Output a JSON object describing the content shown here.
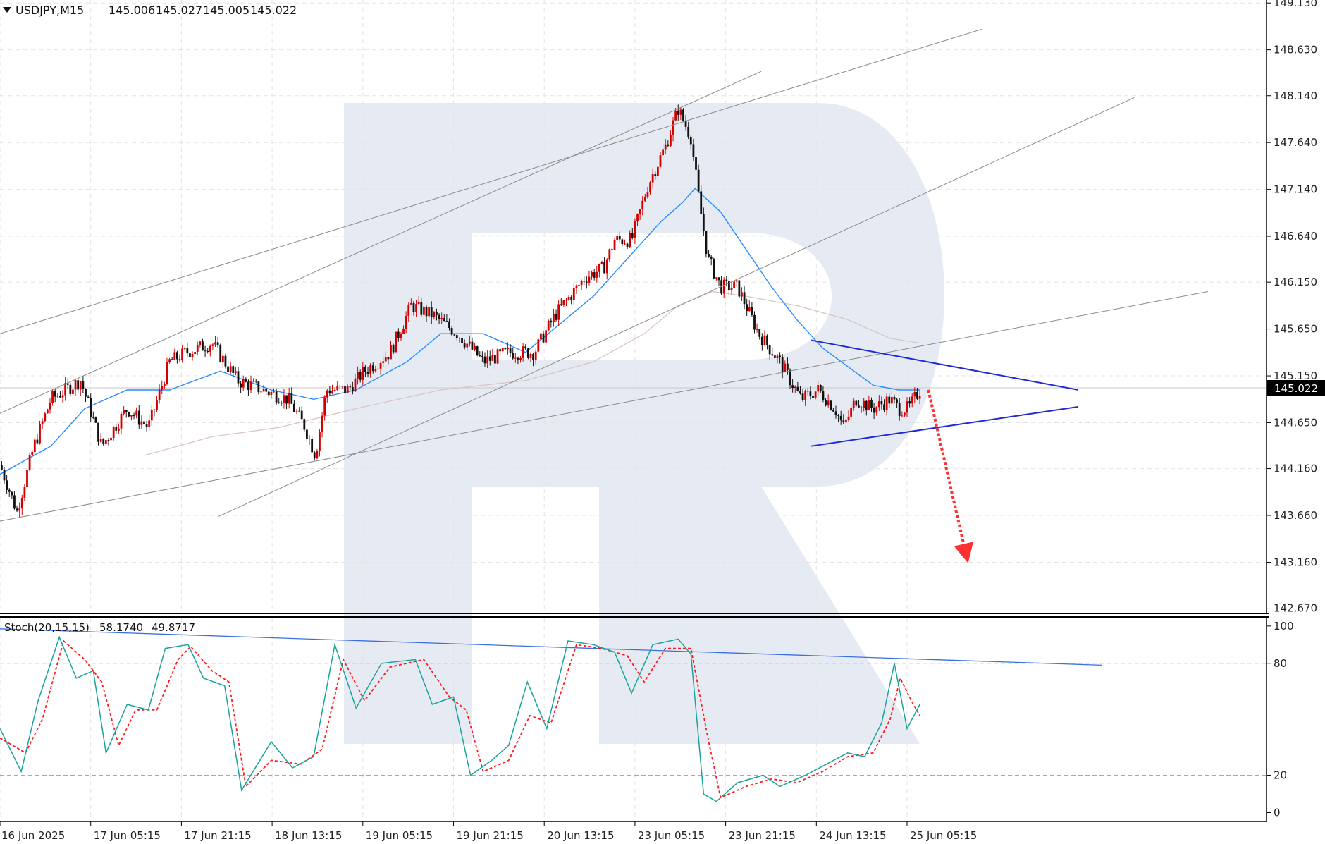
{
  "header": {
    "symbol": "USDJPY,M15",
    "open": "145.006",
    "high": "145.027",
    "low": "145.005",
    "close": "145.022"
  },
  "indicator": {
    "name": "Stoch(20,15,15)",
    "main_value": "58.1740",
    "signal_value": "49.8717",
    "levels": [
      "100",
      "80",
      "20",
      "0"
    ]
  },
  "current_price_label": "145.022",
  "colors": {
    "bull_candle": "#d40000",
    "bear_candle": "#111111",
    "ma_fast": "#2a8cff",
    "ma_slow": "#dcc4c4",
    "channel": "#8a8a8a",
    "triangle": "#1f2ad6",
    "forecast_arrow": "#ff3030",
    "stoch_main": "#1aa39a",
    "stoch_signal": "#ff1a1a",
    "stoch_trend": "#3b6fe0",
    "grid": "#e4e4e4",
    "watermark": "#e6ebf3",
    "price_tag_bg": "#000000"
  },
  "chart_data": [
    {
      "type": "candlestick",
      "title": "USDJPY,M15",
      "xlabel": "",
      "ylabel": "",
      "ylim": [
        142.67,
        149.13
      ],
      "y_ticks": [
        "149.130",
        "148.630",
        "148.140",
        "147.640",
        "147.140",
        "146.640",
        "146.150",
        "145.650",
        "145.150",
        "144.650",
        "144.160",
        "143.660",
        "143.160",
        "142.670"
      ],
      "x_ticks": [
        "16 Jun 2025",
        "17 Jun 05:15",
        "17 Jun 21:15",
        "18 Jun 13:15",
        "19 Jun 05:15",
        "19 Jun 21:15",
        "20 Jun 13:15",
        "23 Jun 05:15",
        "23 Jun 21:15",
        "24 Jun 13:15",
        "25 Jun 05:15"
      ],
      "grid": true,
      "last_price": 145.022,
      "price_path": [
        [
          0,
          144.2
        ],
        [
          20,
          143.7
        ],
        [
          40,
          144.4
        ],
        [
          60,
          144.9
        ],
        [
          95,
          145.1
        ],
        [
          120,
          144.4
        ],
        [
          150,
          144.8
        ],
        [
          175,
          144.6
        ],
        [
          200,
          145.3
        ],
        [
          220,
          145.4
        ],
        [
          250,
          145.5
        ],
        [
          280,
          145.1
        ],
        [
          310,
          145.0
        ],
        [
          340,
          144.9
        ],
        [
          360,
          144.6
        ],
        [
          372,
          144.3
        ],
        [
          385,
          145.0
        ],
        [
          410,
          145.0
        ],
        [
          430,
          145.2
        ],
        [
          460,
          145.4
        ],
        [
          485,
          145.9
        ],
        [
          510,
          145.8
        ],
        [
          540,
          145.6
        ],
        [
          570,
          145.3
        ],
        [
          600,
          145.4
        ],
        [
          630,
          145.4
        ],
        [
          655,
          145.8
        ],
        [
          690,
          146.2
        ],
        [
          712,
          146.3
        ],
        [
          725,
          146.6
        ],
        [
          745,
          146.6
        ],
        [
          765,
          147.2
        ],
        [
          785,
          147.6
        ],
        [
          800,
          148.0
        ],
        [
          815,
          147.7
        ],
        [
          825,
          147.0
        ],
        [
          835,
          146.4
        ],
        [
          850,
          146.1
        ],
        [
          870,
          146.1
        ],
        [
          895,
          145.6
        ],
        [
          920,
          145.3
        ],
        [
          945,
          144.9
        ],
        [
          965,
          145.0
        ],
        [
          985,
          144.8
        ],
        [
          995,
          144.6
        ],
        [
          1010,
          144.9
        ],
        [
          1030,
          144.8
        ],
        [
          1050,
          144.9
        ],
        [
          1060,
          144.8
        ],
        [
          1072,
          144.8
        ],
        [
          1085,
          145.0
        ]
      ],
      "series": [
        {
          "name": "",
          "role": "ma_fast",
          "points": [
            [
              0,
              144.1
            ],
            [
              60,
              144.4
            ],
            [
              100,
              144.8
            ],
            [
              150,
              145.0
            ],
            [
              200,
              145.0
            ],
            [
              260,
              145.2
            ],
            [
              320,
              145.0
            ],
            [
              370,
              144.9
            ],
            [
              420,
              145.0
            ],
            [
              480,
              145.3
            ],
            [
              520,
              145.6
            ],
            [
              570,
              145.6
            ],
            [
              620,
              145.4
            ],
            [
              660,
              145.7
            ],
            [
              700,
              146.0
            ],
            [
              740,
              146.4
            ],
            [
              780,
              146.8
            ],
            [
              805,
              147.0
            ],
            [
              820,
              147.15
            ],
            [
              850,
              146.9
            ],
            [
              880,
              146.5
            ],
            [
              910,
              146.1
            ],
            [
              940,
              145.75
            ],
            [
              970,
              145.45
            ],
            [
              1000,
              145.25
            ],
            [
              1030,
              145.05
            ],
            [
              1060,
              145.0
            ],
            [
              1085,
              145.0
            ]
          ]
        },
        {
          "name": "",
          "role": "ma_slow",
          "points": [
            [
              170,
              144.3
            ],
            [
              250,
              144.5
            ],
            [
              330,
              144.6
            ],
            [
              420,
              144.8
            ],
            [
              520,
              145.0
            ],
            [
              620,
              145.1
            ],
            [
              700,
              145.3
            ],
            [
              760,
              145.6
            ],
            [
              800,
              145.9
            ],
            [
              840,
              146.05
            ],
            [
              880,
              146.0
            ],
            [
              940,
              145.9
            ],
            [
              1000,
              145.75
            ],
            [
              1050,
              145.55
            ],
            [
              1085,
              145.5
            ]
          ]
        }
      ],
      "lines": [
        {
          "role": "channel",
          "from": [
            0,
            145.6
          ],
          "to": [
            1158,
            148.85
          ]
        },
        {
          "role": "channel",
          "from": [
            0,
            144.75
          ],
          "to": [
            898,
            148.4
          ]
        },
        {
          "role": "channel",
          "from": [
            258,
            143.65
          ],
          "to": [
            1338,
            148.12
          ]
        },
        {
          "role": "channel",
          "from": [
            0,
            143.6
          ],
          "to": [
            1425,
            146.05
          ]
        },
        {
          "role": "triangle",
          "from": [
            957,
            145.53
          ],
          "to": [
            1272,
            145.0
          ]
        },
        {
          "role": "triangle",
          "from": [
            957,
            144.4
          ],
          "to": [
            1272,
            144.82
          ]
        },
        {
          "role": "forecast",
          "from": [
            1095,
            145.0
          ],
          "to": [
            1142,
            143.15
          ]
        }
      ]
    },
    {
      "type": "line",
      "title": "Stoch(20,15,15)",
      "ylim": [
        0,
        100
      ],
      "y_ticks": [
        "100",
        "80",
        "20",
        "0"
      ],
      "levels": [
        80,
        20
      ],
      "series": [
        {
          "name": "",
          "role": "main",
          "points": [
            [
              0,
              45
            ],
            [
              25,
              22
            ],
            [
              45,
              60
            ],
            [
              70,
              94
            ],
            [
              90,
              72
            ],
            [
              110,
              76
            ],
            [
              125,
              32
            ],
            [
              150,
              58
            ],
            [
              175,
              55
            ],
            [
              195,
              88
            ],
            [
              222,
              90
            ],
            [
              240,
              72
            ],
            [
              265,
              68
            ],
            [
              285,
              12
            ],
            [
              320,
              38
            ],
            [
              345,
              24
            ],
            [
              370,
              30
            ],
            [
              395,
              90
            ],
            [
              420,
              56
            ],
            [
              450,
              80
            ],
            [
              490,
              82
            ],
            [
              510,
              58
            ],
            [
              535,
              62
            ],
            [
              555,
              20
            ],
            [
              580,
              28
            ],
            [
              600,
              36
            ],
            [
              622,
              70
            ],
            [
              645,
              45
            ],
            [
              670,
              92
            ],
            [
              700,
              90
            ],
            [
              725,
              86
            ],
            [
              745,
              64
            ],
            [
              770,
              90
            ],
            [
              800,
              93
            ],
            [
              815,
              85
            ],
            [
              830,
              10
            ],
            [
              845,
              6
            ],
            [
              870,
              16
            ],
            [
              900,
              20
            ],
            [
              920,
              14
            ],
            [
              950,
              20
            ],
            [
              975,
              26
            ],
            [
              1000,
              32
            ],
            [
              1020,
              30
            ],
            [
              1040,
              48
            ],
            [
              1055,
              80
            ],
            [
              1070,
              45
            ],
            [
              1085,
              58
            ]
          ]
        },
        {
          "name": "",
          "role": "signal",
          "points": [
            [
              0,
              40
            ],
            [
              30,
              32
            ],
            [
              50,
              50
            ],
            [
              75,
              92
            ],
            [
              100,
              82
            ],
            [
              120,
              70
            ],
            [
              140,
              36
            ],
            [
              160,
              55
            ],
            [
              185,
              55
            ],
            [
              210,
              82
            ],
            [
              225,
              89
            ],
            [
              250,
              76
            ],
            [
              270,
              70
            ],
            [
              290,
              14
            ],
            [
              320,
              28
            ],
            [
              355,
              26
            ],
            [
              380,
              34
            ],
            [
              405,
              82
            ],
            [
              430,
              60
            ],
            [
              460,
              78
            ],
            [
              500,
              82
            ],
            [
              530,
              62
            ],
            [
              550,
              55
            ],
            [
              570,
              22
            ],
            [
              600,
              28
            ],
            [
              625,
              52
            ],
            [
              650,
              48
            ],
            [
              680,
              90
            ],
            [
              710,
              88
            ],
            [
              740,
              84
            ],
            [
              760,
              70
            ],
            [
              785,
              88
            ],
            [
              815,
              88
            ],
            [
              835,
              40
            ],
            [
              850,
              8
            ],
            [
              880,
              14
            ],
            [
              910,
              18
            ],
            [
              940,
              16
            ],
            [
              970,
              22
            ],
            [
              1000,
              30
            ],
            [
              1030,
              32
            ],
            [
              1050,
              50
            ],
            [
              1062,
              72
            ],
            [
              1075,
              60
            ],
            [
              1085,
              52
            ]
          ]
        }
      ],
      "lines": [
        {
          "role": "trend",
          "from": [
            0,
            98.5
          ],
          "to": [
            1300,
            79
          ]
        }
      ]
    }
  ]
}
